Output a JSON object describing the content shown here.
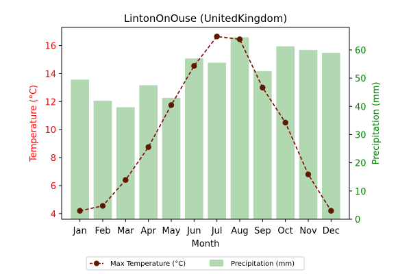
{
  "chart_data": {
    "type": "bar+line",
    "title": "LintonOnOuse (UnitedKingdom)",
    "xlabel": "Month",
    "categories": [
      "Jan",
      "Feb",
      "Mar",
      "Apr",
      "May",
      "Jun",
      "Jul",
      "Aug",
      "Sep",
      "Oct",
      "Nov",
      "Dec"
    ],
    "left_axis": {
      "label": "Temperature (°C)",
      "color": "#ff0000",
      "ylim": [
        3.6,
        17.3
      ],
      "ticks": [
        4,
        6,
        8,
        10,
        12,
        14,
        16
      ]
    },
    "right_axis": {
      "label": "Precipitation (mm)",
      "color": "#008000",
      "ylim": [
        0,
        68
      ],
      "ticks": [
        0,
        10,
        20,
        30,
        40,
        50,
        60
      ]
    },
    "series": [
      {
        "name": "Max Temperature (°C)",
        "kind": "line",
        "axis": "left",
        "color": "#800000",
        "marker_color": "#5c1a00",
        "line_style": "dashed",
        "values": [
          4.2,
          4.55,
          6.4,
          8.75,
          11.75,
          14.55,
          16.65,
          16.45,
          13.0,
          10.5,
          6.8,
          4.2
        ]
      },
      {
        "name": "Precipitation (mm)",
        "kind": "bar",
        "axis": "right",
        "color": "#b2d8b2",
        "values": [
          49.5,
          42,
          39.7,
          47.5,
          43,
          57,
          55.5,
          64.5,
          52.5,
          61.3,
          60,
          59
        ]
      }
    ],
    "legend": {
      "placement": "bottom-center"
    }
  }
}
